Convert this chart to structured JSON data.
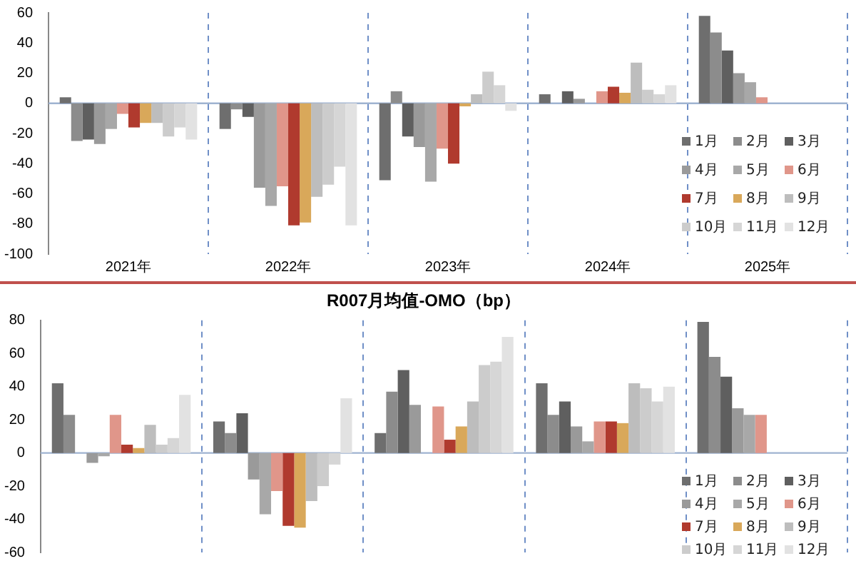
{
  "chart_data": [
    {
      "type": "bar",
      "categories": [
        "2021年",
        "2022年",
        "2023年",
        "2024年",
        "2025年"
      ],
      "ref_lines": [
        {
          "axis": "y",
          "value": 0,
          "color": "#9fb3d1"
        }
      ],
      "ylim": [
        -100,
        60
      ],
      "yticks": [
        -100,
        -80,
        -60,
        -40,
        -20,
        0,
        20,
        40,
        60
      ],
      "grid": "x",
      "legend": "bottom right",
      "series": [
        {
          "name": "1月",
          "color": "#6e6e6e",
          "values": [
            4,
            -17,
            -51,
            6,
            58
          ]
        },
        {
          "name": "2月",
          "color": "#8c8c8c",
          "values": [
            -25,
            -4,
            8,
            null,
            47
          ]
        },
        {
          "name": "3月",
          "color": "#5f5f5f",
          "values": [
            -24,
            -9,
            -22,
            8,
            35
          ]
        },
        {
          "name": "4月",
          "color": "#9a9a9a",
          "values": [
            -27,
            -56,
            -29,
            3,
            20
          ]
        },
        {
          "name": "5月",
          "color": "#a8a8a8",
          "values": [
            -17,
            -68,
            -52,
            null,
            14
          ]
        },
        {
          "name": "6月",
          "color": "#e0968a",
          "values": [
            -7,
            -55,
            -30,
            8,
            4
          ]
        },
        {
          "name": "7月",
          "color": "#b03a2e",
          "values": [
            -16,
            -81,
            -40,
            11,
            null
          ]
        },
        {
          "name": "8月",
          "color": "#d9a85a",
          "values": [
            -13,
            -79,
            -2,
            7,
            null
          ]
        },
        {
          "name": "9月",
          "color": "#bdbdbd",
          "values": [
            -13,
            -62,
            6,
            27,
            null
          ]
        },
        {
          "name": "10月",
          "color": "#cccccc",
          "values": [
            -22,
            -54,
            21,
            9,
            null
          ]
        },
        {
          "name": "11月",
          "color": "#d6d6d6",
          "values": [
            -16,
            -42,
            12,
            6,
            null
          ]
        },
        {
          "name": "12月",
          "color": "#e2e2e2",
          "values": [
            -24,
            -81,
            -5,
            12,
            null
          ]
        }
      ]
    },
    {
      "type": "bar",
      "title": "R007月均值-OMO（bp）",
      "categories": [
        null,
        null,
        null,
        null,
        null
      ],
      "tick_labels": "y",
      "ref_lines": [
        {
          "axis": "y",
          "value": 0,
          "color": "#9fb3d1"
        }
      ],
      "ylim": [
        -60,
        80
      ],
      "yticks": [
        -60,
        -40,
        -20,
        0,
        20,
        40,
        60,
        80
      ],
      "grid": "x",
      "legend": "bottom right",
      "series": [
        {
          "name": "1月",
          "color": "#6e6e6e",
          "values": [
            42,
            19,
            12,
            42,
            79
          ]
        },
        {
          "name": "2月",
          "color": "#8c8c8c",
          "values": [
            23,
            12,
            37,
            23,
            58
          ]
        },
        {
          "name": "3月",
          "color": "#5f5f5f",
          "values": [
            null,
            24,
            50,
            31,
            46
          ]
        },
        {
          "name": "4月",
          "color": "#9a9a9a",
          "values": [
            -6,
            -16,
            29,
            16,
            27
          ]
        },
        {
          "name": "5月",
          "color": "#a8a8a8",
          "values": [
            -2,
            -37,
            null,
            7,
            23
          ]
        },
        {
          "name": "6月",
          "color": "#e0968a",
          "values": [
            23,
            -23,
            28,
            19,
            23
          ]
        },
        {
          "name": "7月",
          "color": "#b03a2e",
          "values": [
            5,
            -44,
            8,
            19,
            null
          ]
        },
        {
          "name": "8月",
          "color": "#d9a85a",
          "values": [
            3,
            -45,
            16,
            18,
            null
          ]
        },
        {
          "name": "9月",
          "color": "#bdbdbd",
          "values": [
            17,
            -29,
            31,
            42,
            null
          ]
        },
        {
          "name": "10月",
          "color": "#cccccc",
          "values": [
            5,
            -20,
            53,
            39,
            null
          ]
        },
        {
          "name": "11月",
          "color": "#d6d6d6",
          "values": [
            9,
            -7,
            55,
            31,
            null
          ]
        },
        {
          "name": "12月",
          "color": "#e2e2e2",
          "values": [
            35,
            33,
            70,
            40,
            null
          ]
        }
      ]
    }
  ]
}
